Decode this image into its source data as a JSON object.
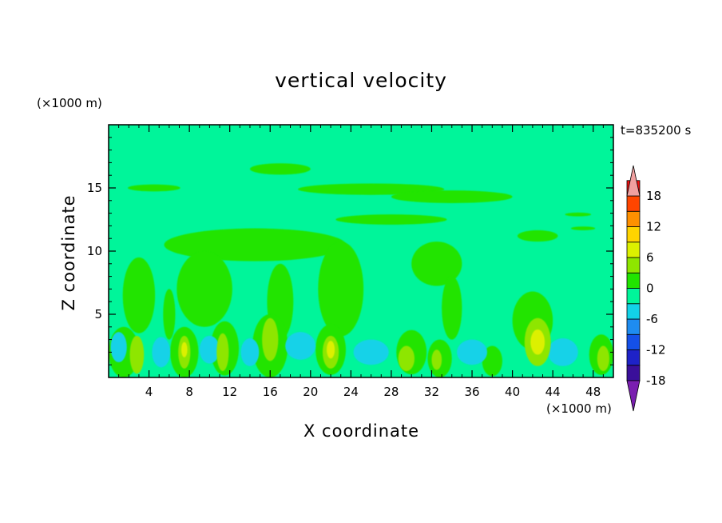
{
  "chart_data": {
    "type": "heatmap",
    "subtype": "filled-contour",
    "title": "vertical velocity",
    "xlabel": "X coordinate",
    "ylabel": "Z coordinate",
    "x_unit": "(×1000 m)",
    "y_unit": "(×1000 m)",
    "time_label": "t=835200 s",
    "xlim": [
      0,
      50
    ],
    "ylim": [
      0,
      20
    ],
    "x_ticks": [
      4,
      8,
      12,
      16,
      20,
      24,
      28,
      32,
      36,
      40,
      44,
      48
    ],
    "x_tick_labels": [
      "4",
      "8",
      "12",
      "16",
      "20",
      "24",
      "28",
      "32",
      "36",
      "40",
      "44",
      "48"
    ],
    "y_ticks": [
      5,
      10,
      15
    ],
    "y_tick_labels": [
      "5",
      "10",
      "15"
    ],
    "background_value": -1,
    "colorbar": {
      "levels": [
        -21,
        -18,
        -15,
        -12,
        -9,
        -6,
        -3,
        0,
        3,
        6,
        9,
        12,
        15,
        18,
        21
      ],
      "labels": [
        "18",
        "12",
        "6",
        "0",
        "-6",
        "-12",
        "-18"
      ],
      "label_values": [
        18,
        12,
        6,
        0,
        -6,
        -12,
        -18
      ],
      "colors": [
        "#7a1fb0",
        "#3a0f9a",
        "#1e22c8",
        "#1450e8",
        "#1e8cf0",
        "#12d2e8",
        "#00f59a",
        "#21e400",
        "#8ee600",
        "#dcf000",
        "#ffd400",
        "#ff9000",
        "#ff4500",
        "#f01010",
        "#f0a0a0"
      ]
    },
    "regions": [
      {
        "value": 2,
        "x": 4.5,
        "z": 15.0,
        "w": 5.2,
        "h": 0.55
      },
      {
        "value": 2,
        "x": 17.0,
        "z": 16.5,
        "w": 6.0,
        "h": 0.9
      },
      {
        "value": 2,
        "x": 26.0,
        "z": 14.9,
        "w": 14.5,
        "h": 0.9
      },
      {
        "value": 2,
        "x": 34.0,
        "z": 14.3,
        "w": 12.0,
        "h": 1.0
      },
      {
        "value": 2,
        "x": 28.0,
        "z": 12.5,
        "w": 11.0,
        "h": 0.8
      },
      {
        "value": 2,
        "x": 42.5,
        "z": 11.2,
        "w": 4.0,
        "h": 0.9
      },
      {
        "value": 2,
        "x": 47.0,
        "z": 11.8,
        "w": 2.4,
        "h": 0.3
      },
      {
        "value": 2,
        "x": 46.5,
        "z": 12.9,
        "w": 2.6,
        "h": 0.3
      },
      {
        "value": 2,
        "x": 14.5,
        "z": 10.5,
        "w": 18.0,
        "h": 2.6
      },
      {
        "value": 2,
        "x": 3.0,
        "z": 6.5,
        "w": 3.2,
        "h": 6.0
      },
      {
        "value": 2,
        "x": 9.5,
        "z": 7.0,
        "w": 5.5,
        "h": 6.0
      },
      {
        "value": 2,
        "x": 17.0,
        "z": 6.0,
        "w": 2.6,
        "h": 6.0
      },
      {
        "value": 2,
        "x": 23.0,
        "z": 7.0,
        "w": 4.5,
        "h": 7.5
      },
      {
        "value": 2,
        "x": 32.5,
        "z": 9.0,
        "w": 5.0,
        "h": 3.5
      },
      {
        "value": 2,
        "x": 34.0,
        "z": 5.5,
        "w": 2.0,
        "h": 5.0
      },
      {
        "value": 2,
        "x": 42.0,
        "z": 4.5,
        "w": 4.0,
        "h": 4.6
      },
      {
        "value": 2,
        "x": 6.0,
        "z": 5.0,
        "w": 1.2,
        "h": 4.0
      },
      {
        "value": 2,
        "x": 1.5,
        "z": 2.0,
        "w": 3.0,
        "h": 4.0
      },
      {
        "value": 2,
        "x": 7.5,
        "z": 2.0,
        "w": 2.8,
        "h": 4.0
      },
      {
        "value": 2,
        "x": 11.5,
        "z": 2.3,
        "w": 2.8,
        "h": 4.3
      },
      {
        "value": 2,
        "x": 16.0,
        "z": 2.5,
        "w": 3.5,
        "h": 5.0
      },
      {
        "value": 2,
        "x": 22.0,
        "z": 2.2,
        "w": 3.0,
        "h": 4.0
      },
      {
        "value": 2,
        "x": 30.0,
        "z": 2.0,
        "w": 3.0,
        "h": 3.5
      },
      {
        "value": 2,
        "x": 32.8,
        "z": 1.5,
        "w": 2.4,
        "h": 3.0
      },
      {
        "value": 2,
        "x": 38.0,
        "z": 1.3,
        "w": 2.0,
        "h": 2.4
      },
      {
        "value": 2,
        "x": 48.8,
        "z": 1.8,
        "w": 2.4,
        "h": 3.2
      },
      {
        "value": -4,
        "x": 1.0,
        "z": 2.4,
        "w": 1.6,
        "h": 2.4
      },
      {
        "value": -4,
        "x": 5.2,
        "z": 2.0,
        "w": 1.8,
        "h": 2.4
      },
      {
        "value": -4,
        "x": 10.0,
        "z": 2.2,
        "w": 2.0,
        "h": 2.2
      },
      {
        "value": -4,
        "x": 14.0,
        "z": 2.0,
        "w": 1.8,
        "h": 2.2
      },
      {
        "value": -4,
        "x": 19.0,
        "z": 2.5,
        "w": 3.0,
        "h": 2.2
      },
      {
        "value": -4,
        "x": 26.0,
        "z": 2.0,
        "w": 3.5,
        "h": 2.0
      },
      {
        "value": -4,
        "x": 36.0,
        "z": 2.0,
        "w": 3.0,
        "h": 2.0
      },
      {
        "value": -4,
        "x": 45.0,
        "z": 2.0,
        "w": 3.0,
        "h": 2.2
      },
      {
        "value": 5,
        "x": 2.8,
        "z": 1.8,
        "w": 1.4,
        "h": 3.0
      },
      {
        "value": 5,
        "x": 7.5,
        "z": 2.0,
        "w": 1.2,
        "h": 2.6
      },
      {
        "value": 5,
        "x": 11.3,
        "z": 2.0,
        "w": 1.2,
        "h": 3.0
      },
      {
        "value": 5,
        "x": 16.0,
        "z": 3.0,
        "w": 1.6,
        "h": 3.4
      },
      {
        "value": 5,
        "x": 22.0,
        "z": 2.0,
        "w": 1.6,
        "h": 2.6
      },
      {
        "value": 5,
        "x": 29.5,
        "z": 1.5,
        "w": 1.6,
        "h": 2.0
      },
      {
        "value": 5,
        "x": 32.5,
        "z": 1.4,
        "w": 1.0,
        "h": 1.6
      },
      {
        "value": 5,
        "x": 49.0,
        "z": 1.5,
        "w": 1.2,
        "h": 2.0
      },
      {
        "value": 5,
        "x": 42.5,
        "z": 2.8,
        "w": 2.6,
        "h": 3.8
      },
      {
        "value": 8,
        "x": 42.5,
        "z": 2.8,
        "w": 1.4,
        "h": 2.0
      },
      {
        "value": 8,
        "x": 7.5,
        "z": 2.2,
        "w": 0.6,
        "h": 1.2
      },
      {
        "value": 8,
        "x": 22.0,
        "z": 2.2,
        "w": 0.8,
        "h": 1.4
      }
    ]
  }
}
